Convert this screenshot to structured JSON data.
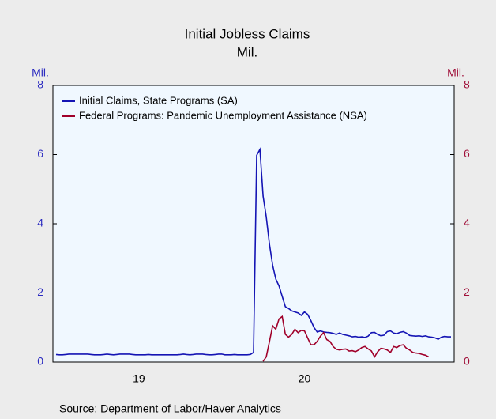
{
  "chart_data": {
    "type": "line",
    "title": "Initial Jobless Claims",
    "subtitle": "Mil.",
    "y_label": "Mil.",
    "y2_label": "Mil.",
    "source": "Source: Department of Labor/Haver Analytics",
    "x": [
      0,
      1,
      2,
      3,
      4,
      5,
      6,
      7,
      8,
      9,
      10,
      11,
      12,
      13,
      14,
      15,
      16,
      17,
      18,
      19,
      20,
      21,
      22,
      23,
      24,
      25,
      26,
      27,
      28,
      29,
      30,
      31,
      32,
      33,
      34,
      35,
      36,
      37,
      38,
      39,
      40,
      41,
      42,
      43,
      44,
      45,
      46,
      47,
      48,
      49,
      50,
      51,
      52,
      53,
      54,
      55,
      56,
      57,
      58,
      59,
      60,
      61,
      62,
      63,
      64,
      65,
      66,
      67,
      68,
      69,
      70,
      71,
      72,
      73,
      74,
      75,
      76,
      77,
      78,
      79,
      80,
      81,
      82,
      83,
      84,
      85,
      86,
      87,
      88,
      89,
      90,
      91,
      92,
      93,
      94,
      95,
      96,
      97,
      98,
      99,
      100,
      101,
      102,
      103,
      104,
      105,
      106,
      107,
      108,
      109,
      110,
      111,
      112,
      113,
      114,
      115,
      116,
      117,
      118,
      119,
      120,
      121,
      122,
      123,
      124
    ],
    "xlim": [
      -1,
      125
    ],
    "xticks": [
      {
        "value": 26,
        "label": "19"
      },
      {
        "value": 78,
        "label": "20"
      }
    ],
    "ylim": [
      0,
      8
    ],
    "yticks": [
      0,
      2,
      4,
      6,
      8
    ],
    "y2lim": [
      0,
      8
    ],
    "y2ticks": [
      0,
      2,
      4,
      6,
      8
    ],
    "legend": "upper left",
    "series": [
      {
        "name": "Initial Claims, State Programs (SA)",
        "color": "#1414b4",
        "values": [
          0.22,
          0.21,
          0.21,
          0.22,
          0.23,
          0.23,
          0.23,
          0.23,
          0.23,
          0.23,
          0.23,
          0.22,
          0.21,
          0.21,
          0.21,
          0.22,
          0.23,
          0.22,
          0.21,
          0.22,
          0.23,
          0.23,
          0.23,
          0.23,
          0.22,
          0.21,
          0.21,
          0.21,
          0.21,
          0.22,
          0.21,
          0.21,
          0.21,
          0.21,
          0.21,
          0.21,
          0.21,
          0.21,
          0.21,
          0.22,
          0.23,
          0.22,
          0.21,
          0.22,
          0.23,
          0.23,
          0.23,
          0.22,
          0.21,
          0.21,
          0.22,
          0.23,
          0.23,
          0.21,
          0.21,
          0.21,
          0.22,
          0.21,
          0.21,
          0.21,
          0.21,
          0.22,
          0.28,
          5.98,
          6.15,
          4.8,
          4.2,
          3.4,
          2.8,
          2.4,
          2.2,
          1.9,
          1.6,
          1.55,
          1.48,
          1.45,
          1.42,
          1.35,
          1.45,
          1.38,
          1.2,
          1.0,
          0.87,
          0.9,
          0.87,
          0.86,
          0.85,
          0.83,
          0.8,
          0.84,
          0.8,
          0.78,
          0.76,
          0.73,
          0.74,
          0.72,
          0.73,
          0.71,
          0.75,
          0.85,
          0.86,
          0.8,
          0.76,
          0.78,
          0.88,
          0.9,
          0.84,
          0.82,
          0.86,
          0.88,
          0.84,
          0.77,
          0.76,
          0.75,
          0.76,
          0.74,
          0.76,
          0.73,
          0.72,
          0.7,
          0.66,
          0.72,
          0.74,
          0.73,
          0.73
        ]
      },
      {
        "name": "Federal Programs: Pandemic Unemployment Assistance (NSA)",
        "color": "#a0002a",
        "axis": "y2",
        "values": [
          null,
          null,
          null,
          null,
          null,
          null,
          null,
          null,
          null,
          null,
          null,
          null,
          null,
          null,
          null,
          null,
          null,
          null,
          null,
          null,
          null,
          null,
          null,
          null,
          null,
          null,
          null,
          null,
          null,
          null,
          null,
          null,
          null,
          null,
          null,
          null,
          null,
          null,
          null,
          null,
          null,
          null,
          null,
          null,
          null,
          null,
          null,
          null,
          null,
          null,
          null,
          null,
          null,
          null,
          null,
          null,
          null,
          null,
          null,
          null,
          null,
          null,
          null,
          null,
          null,
          0.02,
          0.15,
          0.6,
          1.05,
          0.95,
          1.25,
          1.32,
          0.8,
          0.72,
          0.8,
          0.95,
          0.85,
          0.92,
          0.9,
          0.7,
          0.5,
          0.5,
          0.6,
          0.75,
          0.85,
          0.65,
          0.6,
          0.45,
          0.37,
          0.35,
          0.37,
          0.38,
          0.32,
          0.33,
          0.3,
          0.35,
          0.42,
          0.45,
          0.38,
          0.32,
          0.15,
          0.3,
          0.4,
          0.38,
          0.35,
          0.28,
          0.45,
          0.42,
          0.48,
          0.5,
          0.4,
          0.35,
          0.28,
          0.26,
          0.25,
          0.22,
          0.2,
          0.15,
          null,
          null,
          null,
          null,
          null,
          null,
          null
        ]
      }
    ]
  }
}
